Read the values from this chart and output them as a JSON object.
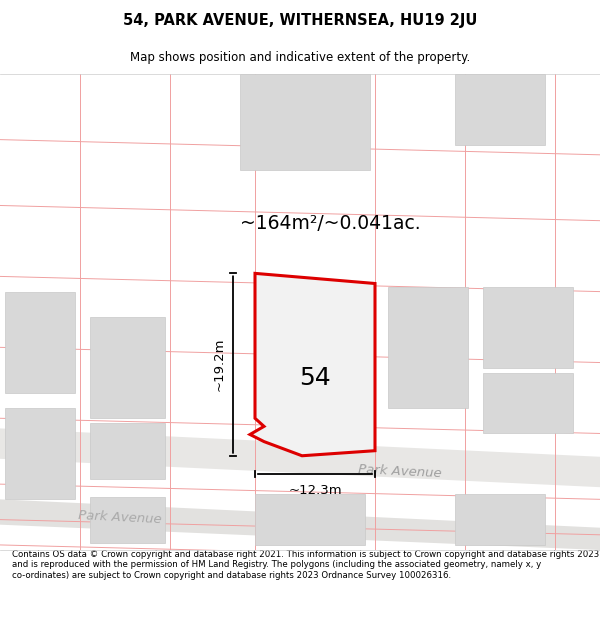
{
  "title": "54, PARK AVENUE, WITHERNSEA, HU19 2JU",
  "subtitle": "Map shows position and indicative extent of the property.",
  "footer": "Contains OS data © Crown copyright and database right 2021. This information is subject to Crown copyright and database rights 2023 and is reproduced with the permission of HM Land Registry. The polygons (including the associated geometry, namely x, y co-ordinates) are subject to Crown copyright and database rights 2023 Ordnance Survey 100026316.",
  "area_label": "~164m²/~0.041ac.",
  "width_label": "~12.3m",
  "height_label": "~19.2m",
  "plot_number": "54",
  "road_label1": "Park Avenue",
  "road_label2": "Park Avenue",
  "map_bg": "#f7f6f5",
  "red_line_color": "#f0a0a0",
  "property_fill": "#f0f0f0",
  "property_edge": "#dd0000",
  "building_fill": "#d8d8d8",
  "building_edge": "#c8c8c8",
  "road_fill": "#e8e7e5",
  "road2_fill": "#e2e1df"
}
